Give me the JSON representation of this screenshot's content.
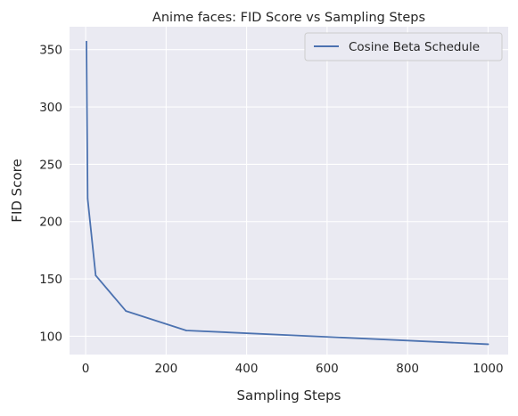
{
  "chart_data": {
    "type": "line",
    "title": "Anime faces: FID Score vs Sampling Steps",
    "xlabel": "Sampling Steps",
    "ylabel": "FID Score",
    "xlim": [
      -40,
      1050
    ],
    "ylim": [
      84,
      370
    ],
    "xticks": [
      0,
      200,
      400,
      600,
      800,
      1000
    ],
    "yticks": [
      100,
      150,
      200,
      250,
      300,
      350
    ],
    "grid": true,
    "legend_position": "top-right",
    "background": "#eaeaf2",
    "series": [
      {
        "name": "Cosine Beta Schedule",
        "color": "#4c72b0",
        "x": [
          2,
          5,
          25,
          100,
          250,
          1000
        ],
        "y": [
          357,
          220,
          153,
          122,
          105,
          93
        ]
      }
    ]
  }
}
